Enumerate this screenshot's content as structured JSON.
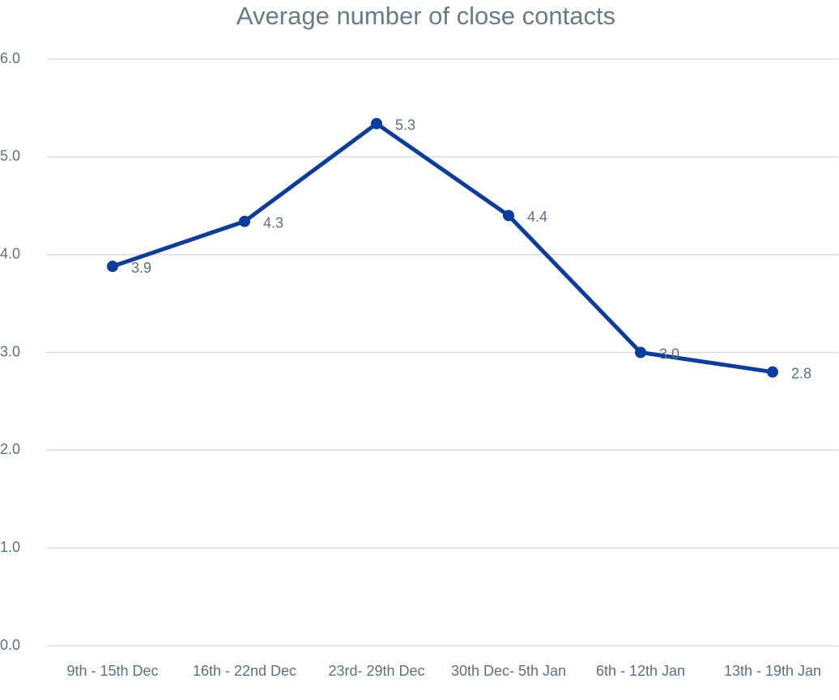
{
  "chart_data": {
    "type": "line",
    "title": "Average number of close contacts",
    "categories": [
      "9th - 15th Dec",
      "16th - 22nd Dec",
      "23rd- 29th Dec",
      "30th Dec- 5th Jan",
      "6th - 12th Jan",
      "13th - 19th Jan"
    ],
    "series": [
      {
        "name": "Average number of close contacts",
        "color": "#0a3d9e",
        "values": [
          3.88,
          4.34,
          5.34,
          4.4,
          3.0,
          2.8
        ],
        "value_labels": [
          "3.9",
          "4.3",
          "5.3",
          "4.4",
          "3.0",
          "2.8"
        ]
      }
    ],
    "ylim": [
      0,
      6
    ],
    "yticks": [
      {
        "value": 0,
        "label": "0.0"
      },
      {
        "value": 1,
        "label": "1.0"
      },
      {
        "value": 2,
        "label": "2.0"
      },
      {
        "value": 3,
        "label": "3.0"
      },
      {
        "value": 4,
        "label": "4.0"
      },
      {
        "value": 5,
        "label": "5.0"
      },
      {
        "value": 6,
        "label": "6.0"
      }
    ],
    "grid": true
  }
}
